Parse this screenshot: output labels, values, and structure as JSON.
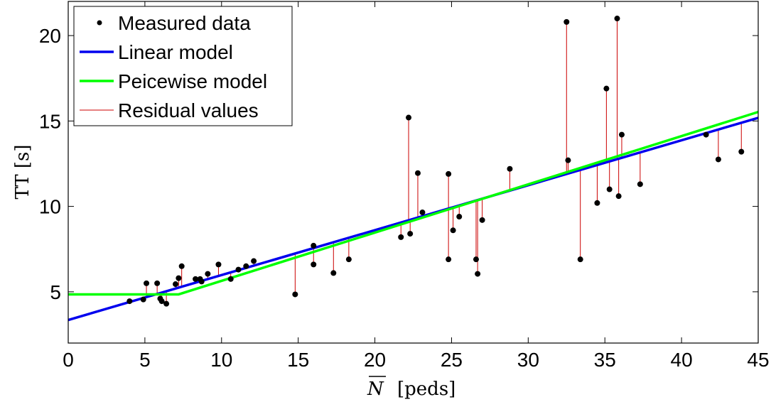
{
  "chart_data": {
    "type": "scatter",
    "title": "",
    "xlabel": "[peds]",
    "xlabel_symbol": "N",
    "ylabel": "TT [s]",
    "xlim": [
      0,
      45
    ],
    "ylim": [
      2,
      22
    ],
    "xticks": [
      0,
      5,
      10,
      15,
      20,
      25,
      30,
      35,
      40,
      45
    ],
    "yticks": [
      5,
      10,
      15,
      20
    ],
    "grid": false,
    "legend_position": "top-left",
    "legend": [
      {
        "key": "measured",
        "label": "Measured data"
      },
      {
        "key": "linear",
        "label": "Linear model"
      },
      {
        "key": "piecewise",
        "label": "Peicewise model"
      },
      {
        "key": "residual",
        "label": "Residual values"
      }
    ],
    "colors": {
      "measured": "#000000",
      "linear": "#0000ee",
      "piecewise": "#00ff00",
      "residual": "#cc0000"
    },
    "linear_model": {
      "intercept": 3.35,
      "slope": 0.263
    },
    "piecewise_model": {
      "breakpoint": 7.2,
      "level": 4.85,
      "slope": 0.2825
    },
    "measured_data": [
      {
        "x": 4.0,
        "y": 4.45
      },
      {
        "x": 4.9,
        "y": 4.55
      },
      {
        "x": 5.1,
        "y": 5.5
      },
      {
        "x": 5.8,
        "y": 5.5
      },
      {
        "x": 6.0,
        "y": 4.6
      },
      {
        "x": 6.1,
        "y": 4.45
      },
      {
        "x": 6.4,
        "y": 4.3
      },
      {
        "x": 7.0,
        "y": 5.45
      },
      {
        "x": 7.2,
        "y": 5.8
      },
      {
        "x": 7.4,
        "y": 6.5
      },
      {
        "x": 8.3,
        "y": 5.75
      },
      {
        "x": 8.6,
        "y": 5.75
      },
      {
        "x": 8.7,
        "y": 5.6
      },
      {
        "x": 9.1,
        "y": 6.05
      },
      {
        "x": 9.8,
        "y": 6.6
      },
      {
        "x": 10.6,
        "y": 5.75
      },
      {
        "x": 11.1,
        "y": 6.3
      },
      {
        "x": 11.6,
        "y": 6.5
      },
      {
        "x": 12.1,
        "y": 6.8
      },
      {
        "x": 14.8,
        "y": 4.85
      },
      {
        "x": 16.0,
        "y": 7.7
      },
      {
        "x": 16.0,
        "y": 6.6
      },
      {
        "x": 17.3,
        "y": 6.1
      },
      {
        "x": 18.3,
        "y": 6.9
      },
      {
        "x": 21.7,
        "y": 8.2
      },
      {
        "x": 22.2,
        "y": 15.2
      },
      {
        "x": 22.3,
        "y": 8.4
      },
      {
        "x": 22.8,
        "y": 11.95
      },
      {
        "x": 23.1,
        "y": 9.65
      },
      {
        "x": 24.8,
        "y": 11.9
      },
      {
        "x": 24.8,
        "y": 6.9
      },
      {
        "x": 25.1,
        "y": 8.6
      },
      {
        "x": 25.5,
        "y": 9.4
      },
      {
        "x": 26.6,
        "y": 6.9
      },
      {
        "x": 26.7,
        "y": 6.05
      },
      {
        "x": 27.0,
        "y": 9.2
      },
      {
        "x": 28.8,
        "y": 12.2
      },
      {
        "x": 32.5,
        "y": 20.8
      },
      {
        "x": 32.6,
        "y": 12.7
      },
      {
        "x": 33.4,
        "y": 6.9
      },
      {
        "x": 34.5,
        "y": 10.2
      },
      {
        "x": 35.1,
        "y": 16.9
      },
      {
        "x": 35.3,
        "y": 11.0
      },
      {
        "x": 35.8,
        "y": 21.0
      },
      {
        "x": 35.9,
        "y": 10.6
      },
      {
        "x": 36.1,
        "y": 14.2
      },
      {
        "x": 37.3,
        "y": 11.3
      },
      {
        "x": 41.6,
        "y": 14.2
      },
      {
        "x": 42.4,
        "y": 12.75
      },
      {
        "x": 43.9,
        "y": 13.2
      }
    ]
  }
}
